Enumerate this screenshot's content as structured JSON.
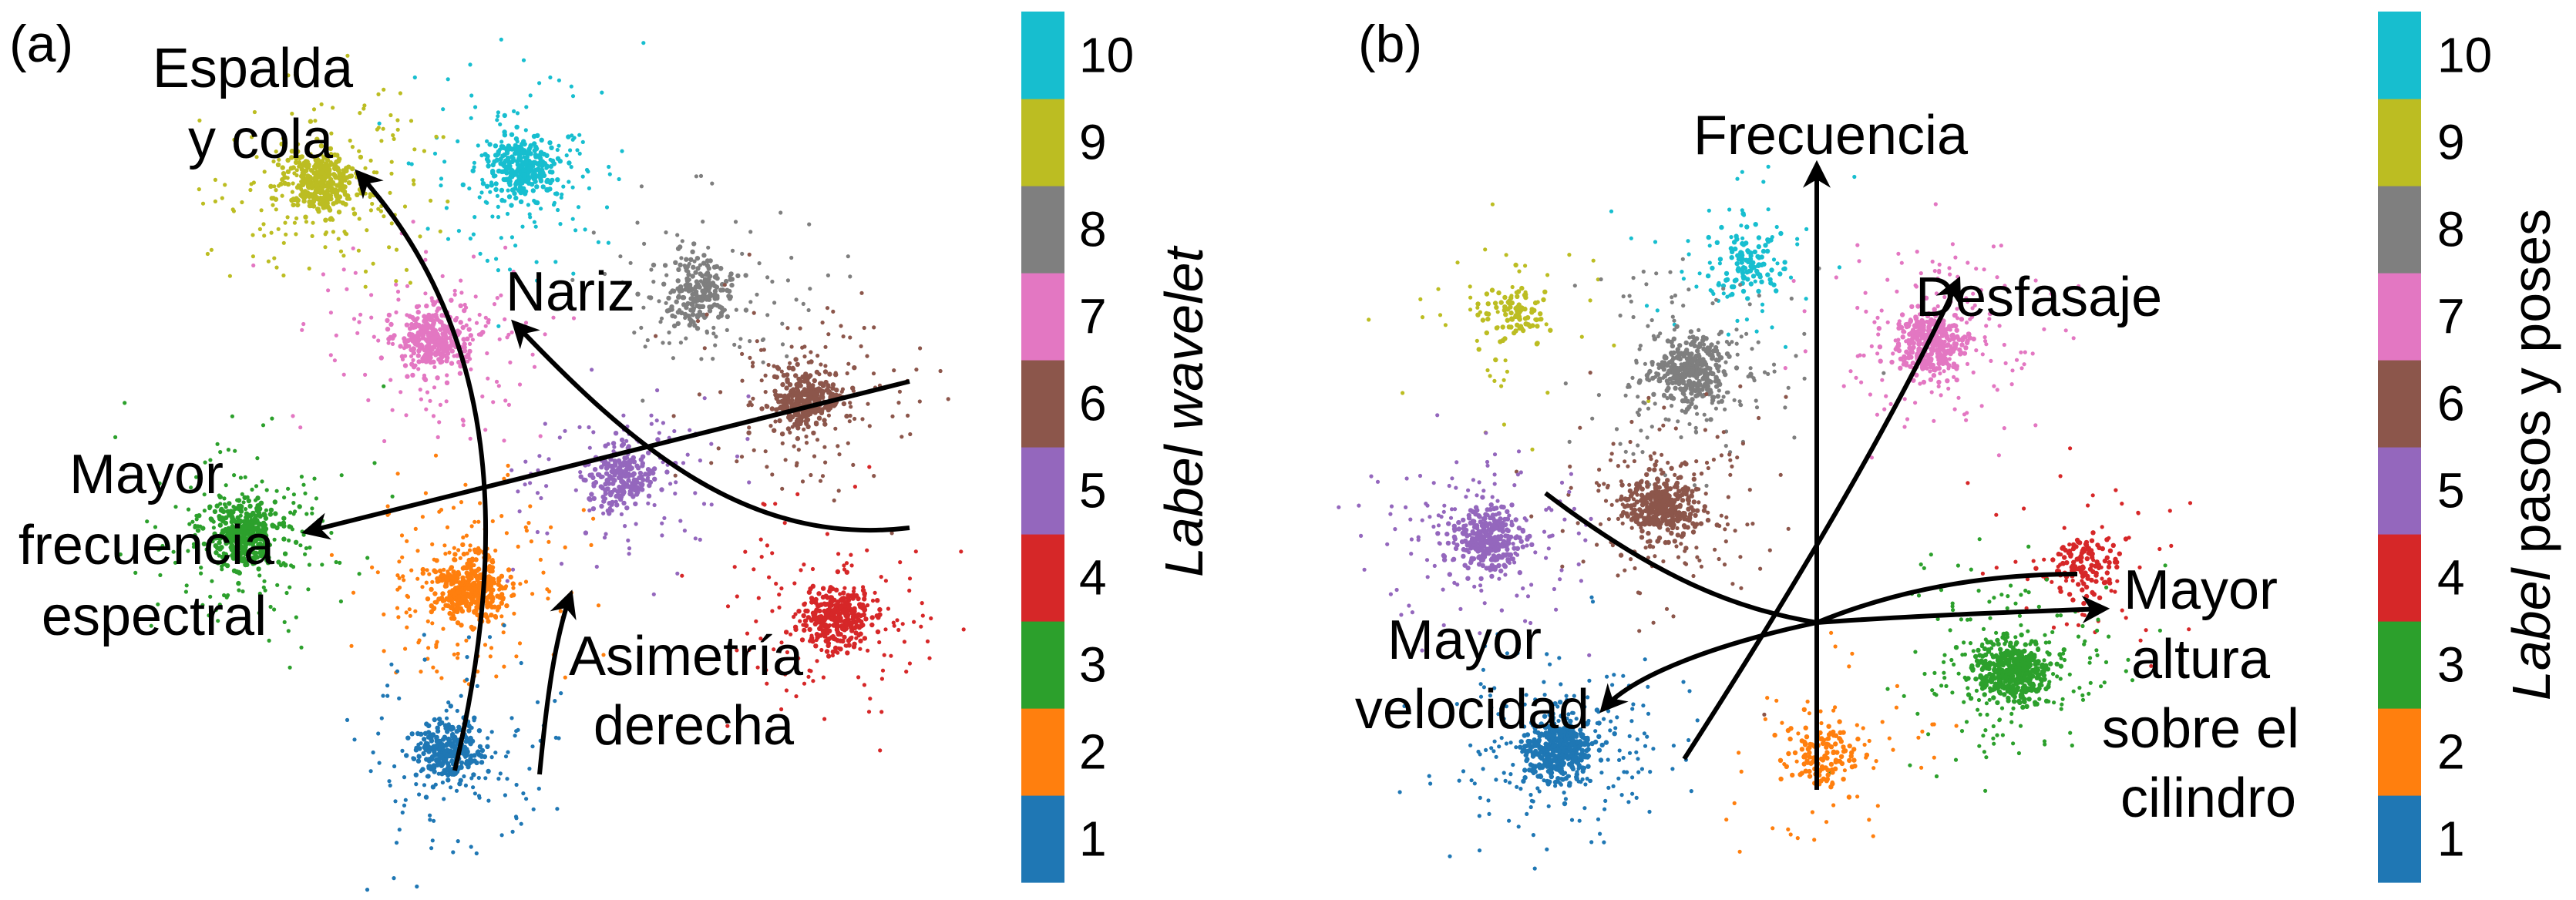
{
  "colors": {
    "1": "#1f77b4",
    "2": "#ff7f0e",
    "3": "#2ca02c",
    "4": "#d62728",
    "5": "#9467bd",
    "6": "#8c564b",
    "7": "#e377c2",
    "8": "#7f7f7f",
    "9": "#bcbd22",
    "10": "#17becf"
  },
  "chart_data": [
    {
      "type": "scatter",
      "panel_label": "(a)",
      "colorbar": {
        "title_italic": "Label wavelet",
        "title_rest": "",
        "ticks": [
          "1",
          "2",
          "3",
          "4",
          "5",
          "6",
          "7",
          "8",
          "9",
          "10"
        ]
      },
      "clusters": [
        {
          "label": 10,
          "x": 0.42,
          "y": 0.8,
          "n": 420
        },
        {
          "label": 9,
          "x": 0.15,
          "y": 0.78,
          "n": 520
        },
        {
          "label": 8,
          "x": 0.66,
          "y": 0.64,
          "n": 300
        },
        {
          "label": 7,
          "x": 0.3,
          "y": 0.58,
          "n": 420
        },
        {
          "label": 6,
          "x": 0.8,
          "y": 0.5,
          "n": 420
        },
        {
          "label": 5,
          "x": 0.55,
          "y": 0.4,
          "n": 300
        },
        {
          "label": 4,
          "x": 0.84,
          "y": 0.22,
          "n": 420
        },
        {
          "label": 3,
          "x": 0.05,
          "y": 0.33,
          "n": 520
        },
        {
          "label": 2,
          "x": 0.35,
          "y": 0.26,
          "n": 520
        },
        {
          "label": 1,
          "x": 0.32,
          "y": 0.05,
          "n": 380
        }
      ],
      "annotations": [
        {
          "lines": [
            "Espalda",
            "y cola"
          ]
        },
        {
          "lines": [
            "Nariz"
          ]
        },
        {
          "lines": [
            "Mayor",
            "frecuencia",
            "espectral"
          ]
        },
        {
          "lines": [
            "Asimetría",
            "derecha"
          ]
        }
      ]
    },
    {
      "type": "scatter",
      "panel_label": "(b)",
      "colorbar": {
        "title_italic": "Label",
        "title_rest": " pasos y poses",
        "ticks": [
          "1",
          "2",
          "3",
          "4",
          "5",
          "6",
          "7",
          "8",
          "9",
          "10"
        ]
      },
      "clusters": [
        {
          "label": 10,
          "x": 0.42,
          "y": 0.82,
          "n": 160
        },
        {
          "label": 9,
          "x": 0.1,
          "y": 0.74,
          "n": 140
        },
        {
          "label": 8,
          "x": 0.34,
          "y": 0.66,
          "n": 480
        },
        {
          "label": 7,
          "x": 0.67,
          "y": 0.7,
          "n": 480
        },
        {
          "label": 6,
          "x": 0.3,
          "y": 0.45,
          "n": 480
        },
        {
          "label": 5,
          "x": 0.06,
          "y": 0.4,
          "n": 420
        },
        {
          "label": 4,
          "x": 0.88,
          "y": 0.36,
          "n": 180
        },
        {
          "label": 3,
          "x": 0.78,
          "y": 0.2,
          "n": 620
        },
        {
          "label": 2,
          "x": 0.52,
          "y": 0.07,
          "n": 180
        },
        {
          "label": 1,
          "x": 0.16,
          "y": 0.08,
          "n": 620
        }
      ],
      "annotations": [
        {
          "lines": [
            "Frecuencia"
          ]
        },
        {
          "lines": [
            "Desfasaje"
          ]
        },
        {
          "lines": [
            "Mayor",
            "velocidad"
          ]
        },
        {
          "lines": [
            "Mayor",
            "altura",
            "sobre el",
            "cilindro"
          ]
        }
      ]
    }
  ]
}
